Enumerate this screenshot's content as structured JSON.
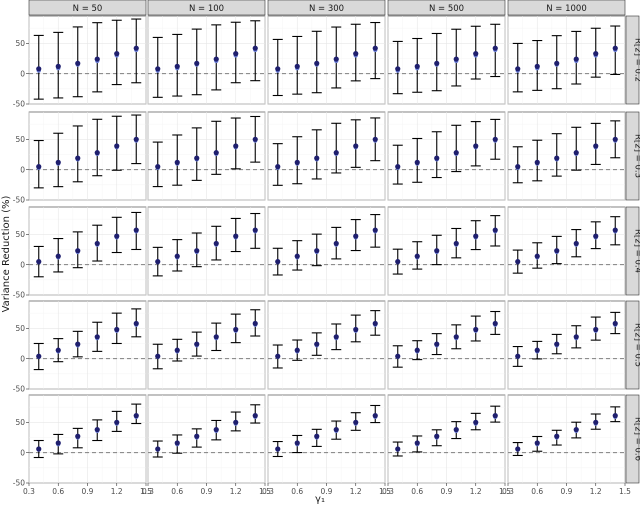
{
  "chart_data": {
    "type": "scatter",
    "ylabel": "Variance Reduction (%)",
    "xlabel": "γ₁",
    "col_strips": [
      "N = 50",
      "N = 100",
      "N = 300",
      "N = 500",
      "N = 1000"
    ],
    "row_strips": [
      "R[2] = 0.2",
      "R[2] = 0.3",
      "R[2] = 0.4",
      "R[2] = 0.5",
      "R[2] = 0.6"
    ],
    "x": [
      0.4,
      0.6,
      0.8,
      1.0,
      1.2,
      1.4
    ],
    "xlim": [
      0.3,
      1.5
    ],
    "ylim": [
      -50,
      95
    ],
    "x_ticks": [
      0.3,
      0.6,
      0.9,
      1.2,
      1.5
    ],
    "x_tick_labels": [
      "0.3",
      "0.6",
      "0.9",
      "1.2",
      "1.5"
    ],
    "y_ticks": [
      -50,
      0,
      50
    ],
    "y_tick_labels": [
      "-50",
      "0",
      "50"
    ],
    "reference_line_y": 0,
    "grid": true,
    "series": [
      {
        "mean": [
          8,
          12,
          17,
          24,
          33,
          42
        ],
        "alt": [
          5,
          9,
          15,
          21,
          30,
          39
        ],
        "lower": [
          -42,
          -40,
          -38,
          -30,
          -18,
          -15
        ],
        "upper": [
          63,
          68,
          77,
          84,
          88,
          90
        ]
      },
      {
        "mean": [
          5,
          12,
          19,
          28,
          39,
          50
        ],
        "alt": [
          3,
          10,
          17,
          26,
          37,
          48
        ],
        "lower": [
          -30,
          -28,
          -20,
          -10,
          -1,
          10
        ],
        "upper": [
          48,
          60,
          72,
          83,
          88,
          90
        ]
      },
      {
        "mean": [
          5,
          14,
          23,
          35,
          47,
          57
        ],
        "alt": [
          4,
          12,
          21,
          33,
          45,
          55
        ],
        "lower": [
          -20,
          -12,
          -5,
          6,
          20,
          25
        ],
        "upper": [
          30,
          43,
          54,
          65,
          78,
          86
        ]
      },
      {
        "mean": [
          4,
          14,
          24,
          36,
          48,
          58
        ],
        "alt": [
          3,
          12,
          22,
          34,
          46,
          56
        ],
        "lower": [
          -18,
          -5,
          3,
          12,
          25,
          36
        ],
        "upper": [
          25,
          33,
          45,
          60,
          75,
          82
        ]
      },
      {
        "mean": [
          6,
          16,
          27,
          38,
          50,
          61
        ],
        "alt": [
          5,
          14,
          25,
          36,
          48,
          59
        ],
        "lower": [
          -8,
          -2,
          8,
          20,
          35,
          48
        ],
        "upper": [
          20,
          30,
          40,
          54,
          68,
          80
        ]
      }
    ],
    "legend": "none"
  }
}
